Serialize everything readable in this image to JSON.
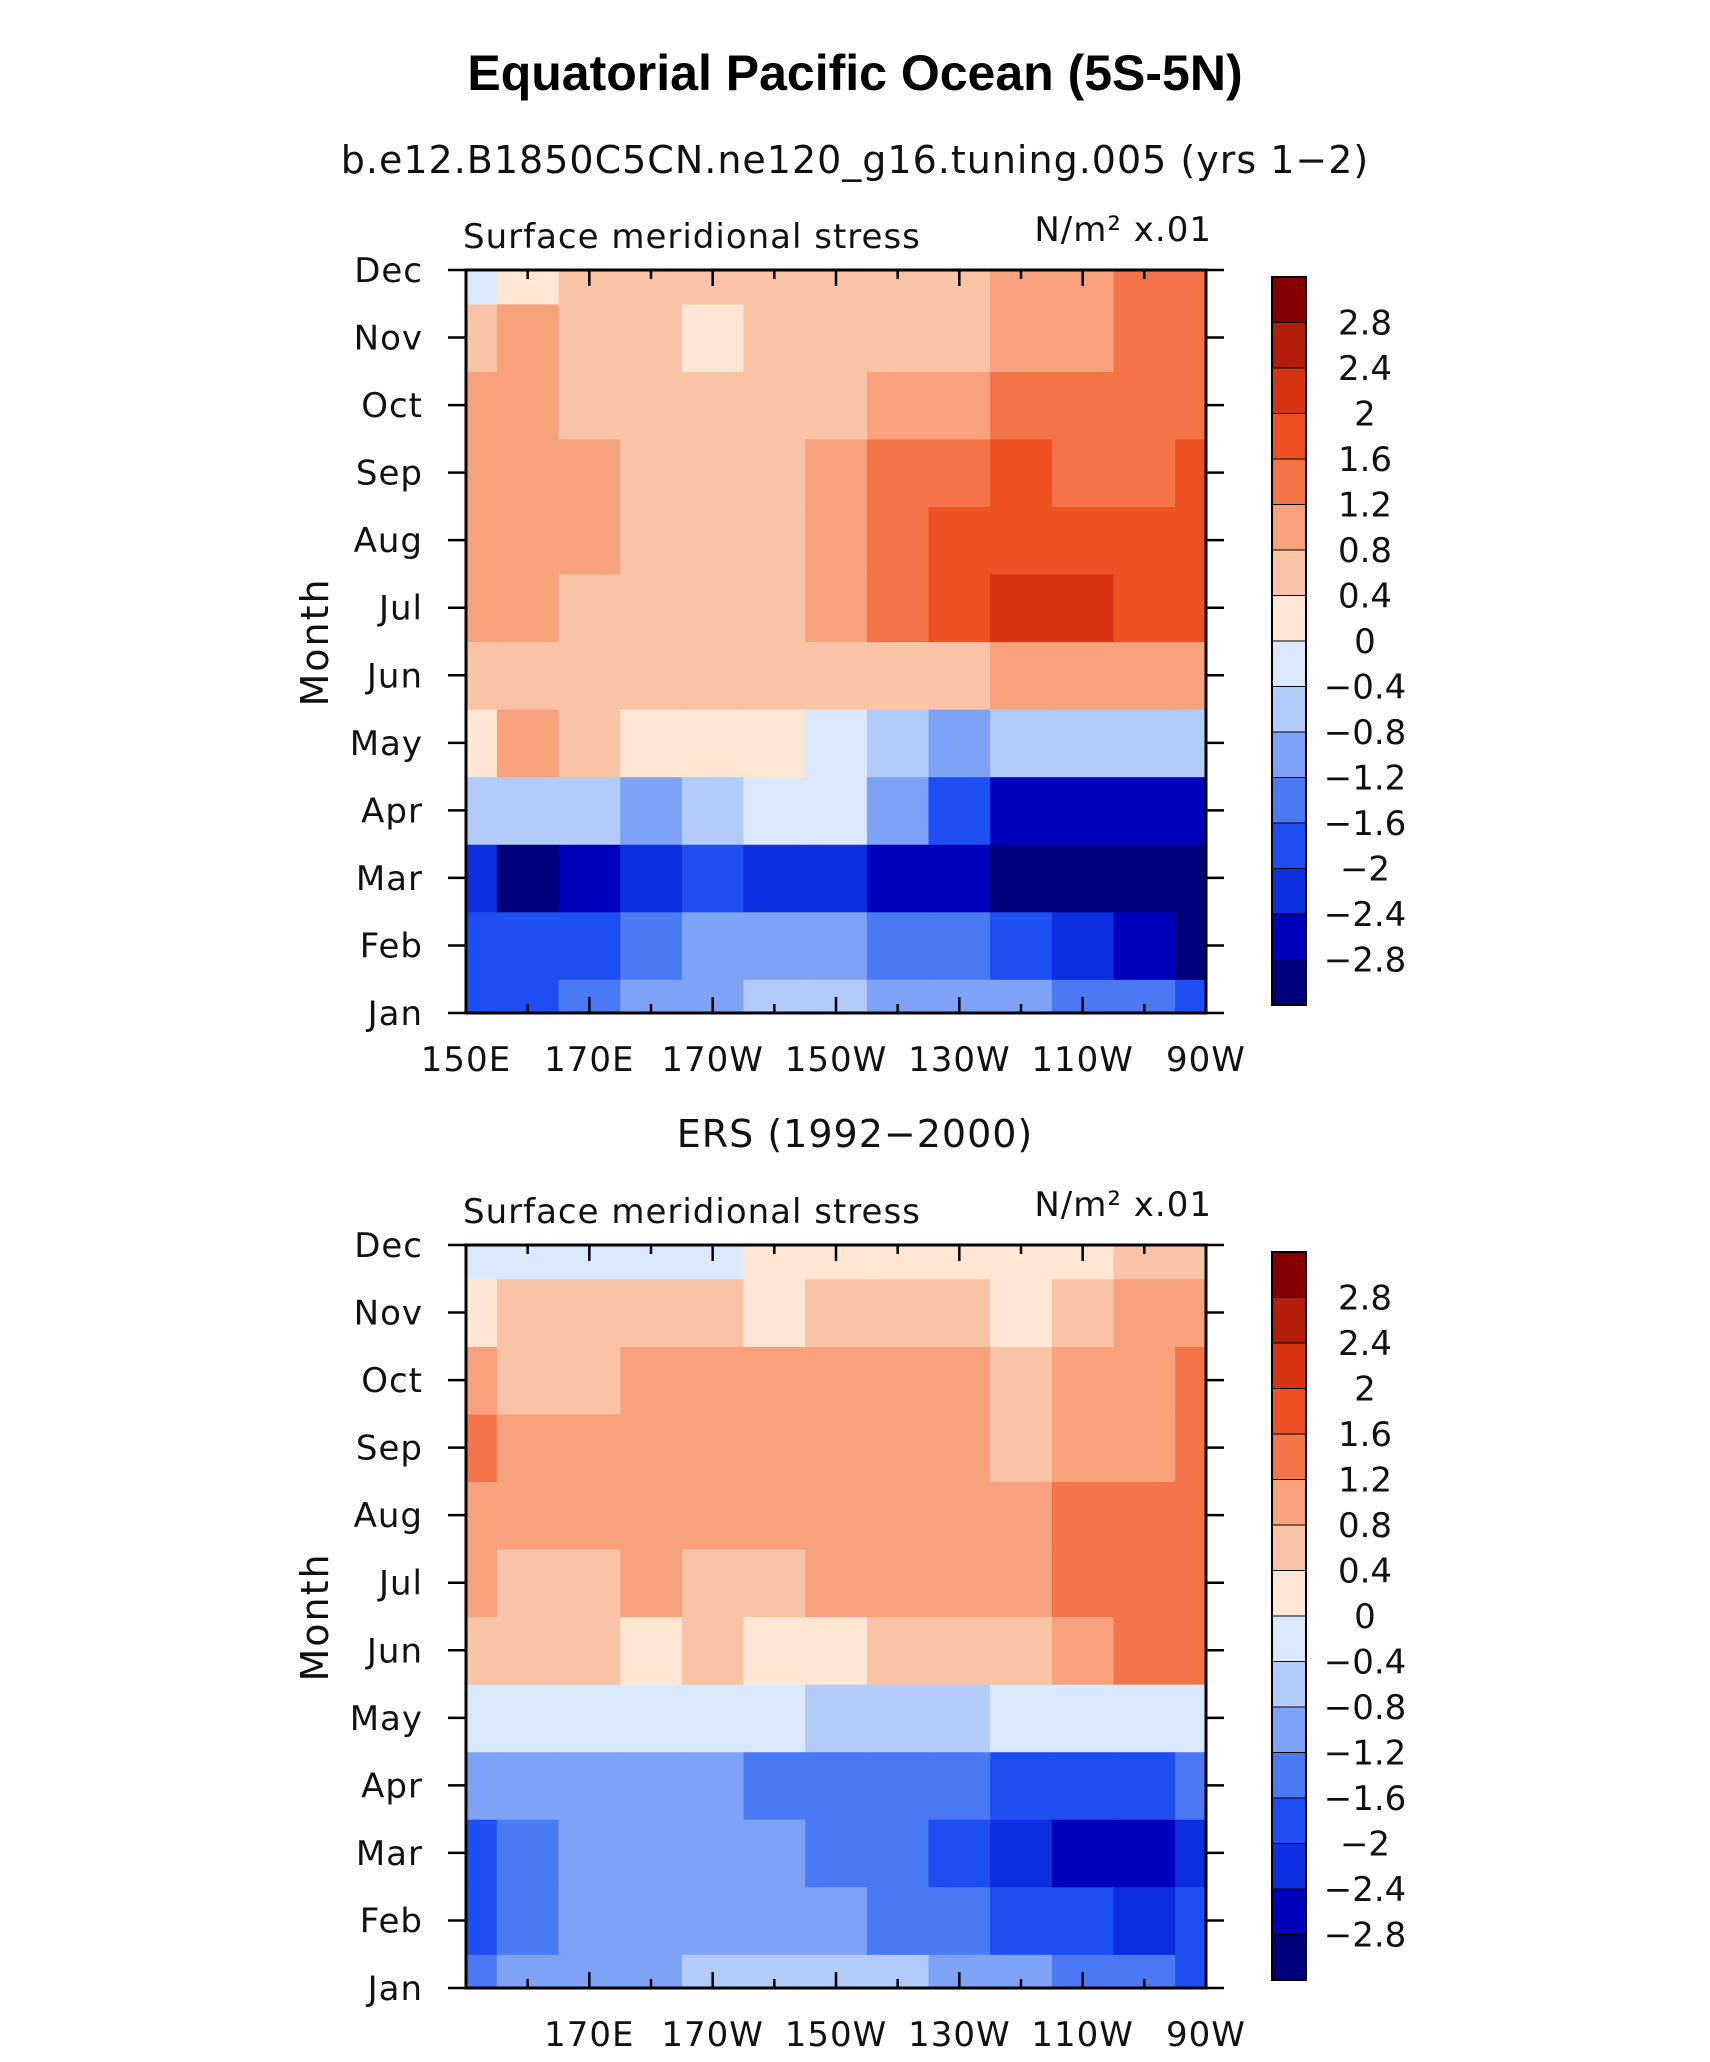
{
  "title": "Equatorial Pacific Ocean (5S-5N)",
  "colors": {
    "levels": [
      -2.8,
      -2.4,
      -2,
      -1.6,
      -1.2,
      -0.8,
      -0.4,
      0,
      0.4,
      0.8,
      1.2,
      1.6,
      2,
      2.4,
      2.8
    ],
    "palette": [
      "#00007a",
      "#0000bb",
      "#0d2fe0",
      "#1f4ff2",
      "#4b79f4",
      "#7ea3f6",
      "#b2cbf8",
      "#d9e9fb",
      "#fde7d4",
      "#f9c4a6",
      "#f7a17d",
      "#f4744a",
      "#ee5224",
      "#d63413",
      "#b31d0c",
      "#850000"
    ]
  },
  "chart_data": [
    {
      "type": "heatmap",
      "subtitle": "b.e12.B1850C5CN.ne120_g16.tuning.005 (yrs 1−2)",
      "variable_label": "Surface meridional stress",
      "units_label": "N/m² x.01",
      "ylabel": "Month",
      "x_tick_labels": [
        "150E",
        "170E",
        "170W",
        "150W",
        "130W",
        "110W",
        "90W"
      ],
      "y_tick_labels": [
        "Jan",
        "Feb",
        "Mar",
        "Apr",
        "May",
        "Jun",
        "Jul",
        "Aug",
        "Sep",
        "Oct",
        "Nov",
        "Dec"
      ],
      "colorbar_labels": [
        "2.8",
        "2.4",
        "2",
        "1.6",
        "1.2",
        "0.8",
        "0.4",
        "0",
        "−0.4",
        "−0.8",
        "−1.2",
        "−1.6",
        "−2",
        "−2.4",
        "−2.8"
      ],
      "x": [
        150,
        160,
        170,
        180,
        190,
        200,
        210,
        220,
        230,
        240,
        250,
        260,
        270
      ],
      "y": [
        "Jan",
        "Feb",
        "Mar",
        "Apr",
        "May",
        "Jun",
        "Jul",
        "Aug",
        "Sep",
        "Oct",
        "Nov",
        "Dec"
      ],
      "z": [
        [
          -1.7,
          -1.8,
          -1.6,
          -1.1,
          -0.9,
          -0.8,
          -0.8,
          -0.9,
          -1.0,
          -1.2,
          -1.4,
          -1.6,
          -1.7
        ],
        [
          -1.8,
          -2.0,
          -1.8,
          -1.4,
          -1.1,
          -1.0,
          -1.1,
          -1.3,
          -1.6,
          -2.0,
          -2.4,
          -2.7,
          -2.9
        ],
        [
          -2.4,
          -2.9,
          -2.5,
          -2.1,
          -2.0,
          -2.1,
          -2.3,
          -2.5,
          -2.8,
          -3.2,
          -3.4,
          -3.4,
          -3.4
        ],
        [
          -0.6,
          -0.8,
          -0.8,
          -0.9,
          -0.5,
          -0.3,
          -0.3,
          -1.2,
          -2.0,
          -2.6,
          -2.8,
          -2.8,
          -2.8
        ],
        [
          0.3,
          0.9,
          0.5,
          0.2,
          0.2,
          0.2,
          -0.2,
          -0.6,
          -0.9,
          -0.8,
          -0.6,
          -0.5,
          -0.5
        ],
        [
          0.7,
          0.5,
          0.5,
          0.5,
          0.4,
          0.5,
          0.4,
          0.6,
          0.7,
          0.8,
          0.8,
          0.8,
          0.8
        ],
        [
          1.0,
          0.8,
          0.7,
          0.6,
          0.5,
          0.7,
          0.9,
          1.2,
          1.7,
          2.1,
          2.3,
          1.8,
          1.7
        ],
        [
          1.0,
          1.0,
          0.9,
          0.6,
          0.5,
          0.6,
          0.9,
          1.5,
          1.8,
          1.9,
          1.7,
          1.7,
          1.8
        ],
        [
          0.9,
          1.0,
          0.9,
          0.6,
          0.5,
          0.5,
          0.8,
          1.3,
          1.5,
          1.6,
          1.5,
          1.5,
          1.6
        ],
        [
          0.8,
          0.8,
          0.7,
          0.5,
          0.4,
          0.5,
          0.7,
          0.9,
          1.1,
          1.2,
          1.2,
          1.4,
          1.5
        ],
        [
          0.5,
          0.9,
          0.6,
          0.5,
          0.3,
          0.4,
          0.6,
          0.7,
          0.7,
          0.9,
          1.1,
          1.3,
          1.4
        ],
        [
          -0.3,
          0.3,
          0.4,
          0.5,
          0.4,
          0.4,
          0.5,
          0.6,
          0.7,
          0.9,
          1.1,
          1.2,
          1.3
        ]
      ]
    },
    {
      "type": "heatmap",
      "subtitle": "ERS (1992−2000)",
      "variable_label": "Surface meridional stress",
      "units_label": "N/m² x.01",
      "ylabel": "Month",
      "x_tick_labels": [
        "170E",
        "170W",
        "150W",
        "130W",
        "110W",
        "90W"
      ],
      "y_tick_labels": [
        "Jan",
        "Feb",
        "Mar",
        "Apr",
        "May",
        "Jun",
        "Jul",
        "Aug",
        "Sep",
        "Oct",
        "Nov",
        "Dec"
      ],
      "colorbar_labels": [
        "2.8",
        "2.4",
        "2",
        "1.6",
        "1.2",
        "0.8",
        "0.4",
        "0",
        "−0.4",
        "−0.8",
        "−1.2",
        "−1.6",
        "−2",
        "−2.4",
        "−2.8"
      ],
      "x": [
        150,
        160,
        170,
        180,
        190,
        200,
        210,
        220,
        230,
        240,
        250,
        260,
        270
      ],
      "y": [
        "Jan",
        "Feb",
        "Mar",
        "Apr",
        "May",
        "Jun",
        "Jul",
        "Aug",
        "Sep",
        "Oct",
        "Nov",
        "Dec"
      ],
      "z": [
        [
          -1.6,
          -1.2,
          -1.0,
          -0.9,
          -0.7,
          -0.7,
          -0.6,
          -0.8,
          -0.9,
          -1.2,
          -1.3,
          -1.6,
          -1.7
        ],
        [
          -1.7,
          -1.5,
          -1.2,
          -1.0,
          -1.1,
          -1.1,
          -1.2,
          -1.4,
          -1.6,
          -1.8,
          -2.0,
          -2.1,
          -2.0
        ],
        [
          -1.9,
          -1.4,
          -1.1,
          -1.0,
          -1.1,
          -1.2,
          -1.3,
          -1.6,
          -1.9,
          -2.2,
          -2.5,
          -2.6,
          -2.4
        ],
        [
          -0.9,
          -1.0,
          -1.0,
          -0.9,
          -1.1,
          -1.4,
          -1.3,
          -1.5,
          -1.6,
          -1.7,
          -1.8,
          -1.7,
          -1.6
        ],
        [
          -0.2,
          -0.3,
          -0.3,
          -0.2,
          -0.4,
          -0.4,
          -0.5,
          -0.6,
          -0.6,
          -0.4,
          -0.3,
          -0.3,
          -0.3
        ],
        [
          0.6,
          0.4,
          0.5,
          0.3,
          0.4,
          0.1,
          0.3,
          0.5,
          0.5,
          0.6,
          0.9,
          1.2,
          1.4
        ],
        [
          0.8,
          0.6,
          0.7,
          0.8,
          0.7,
          0.6,
          0.8,
          0.9,
          0.9,
          0.9,
          1.3,
          1.5,
          1.5
        ],
        [
          1.0,
          0.8,
          0.8,
          0.9,
          0.9,
          0.8,
          0.9,
          1.0,
          0.9,
          0.8,
          1.2,
          1.3,
          1.3
        ],
        [
          1.4,
          0.9,
          0.8,
          0.9,
          1.0,
          0.8,
          1.0,
          1.1,
          1.0,
          0.7,
          0.9,
          1.1,
          1.3
        ],
        [
          0.9,
          0.7,
          0.7,
          0.8,
          0.9,
          0.8,
          0.9,
          1.0,
          0.9,
          0.6,
          0.8,
          1.0,
          1.4
        ],
        [
          0.3,
          0.5,
          0.5,
          0.5,
          0.4,
          0.3,
          0.4,
          0.5,
          0.4,
          0.3,
          0.7,
          0.9,
          1.0
        ],
        [
          -0.2,
          -0.3,
          -0.3,
          -0.2,
          -0.2,
          0.1,
          0.1,
          0.2,
          0.2,
          0.3,
          0.3,
          0.4,
          0.5
        ]
      ]
    }
  ]
}
